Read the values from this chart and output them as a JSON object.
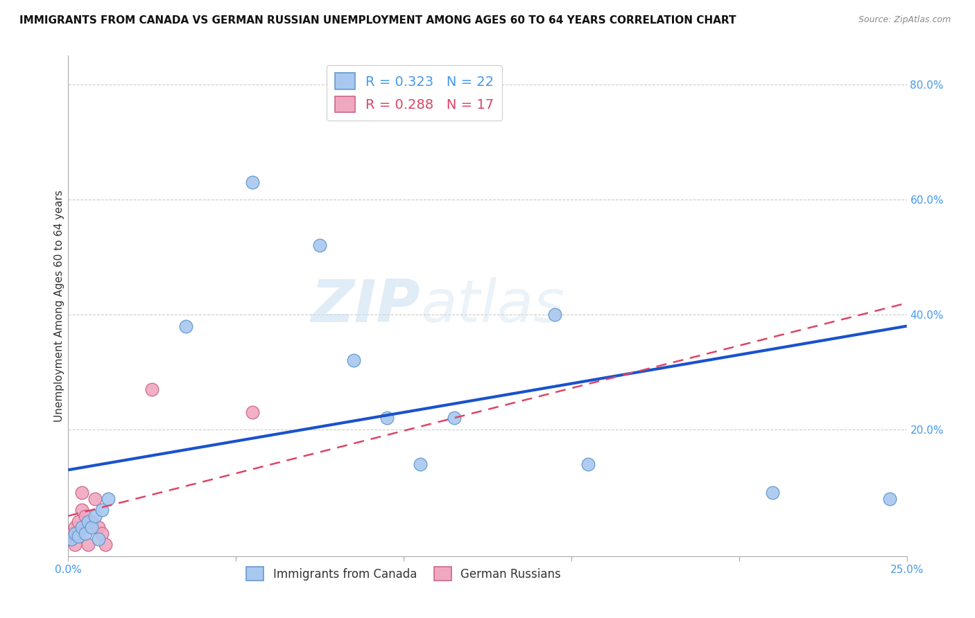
{
  "title": "IMMIGRANTS FROM CANADA VS GERMAN RUSSIAN UNEMPLOYMENT AMONG AGES 60 TO 64 YEARS CORRELATION CHART",
  "source": "Source: ZipAtlas.com",
  "xlabel": "",
  "ylabel": "Unemployment Among Ages 60 to 64 years",
  "xlim": [
    0.0,
    0.25
  ],
  "ylim": [
    -0.02,
    0.85
  ],
  "xticks": [
    0.0,
    0.05,
    0.1,
    0.15,
    0.2,
    0.25
  ],
  "xtick_labels": [
    "0.0%",
    "",
    "",
    "",
    "",
    "25.0%"
  ],
  "yticks_right": [
    0.0,
    0.2,
    0.4,
    0.6,
    0.8
  ],
  "ytick_labels_right": [
    "",
    "20.0%",
    "40.0%",
    "60.0%",
    "80.0%"
  ],
  "canada_x": [
    0.001,
    0.002,
    0.003,
    0.004,
    0.005,
    0.006,
    0.007,
    0.008,
    0.009,
    0.01,
    0.012,
    0.035,
    0.055,
    0.075,
    0.085,
    0.095,
    0.105,
    0.115,
    0.145,
    0.155,
    0.21,
    0.245
  ],
  "canada_y": [
    0.01,
    0.02,
    0.015,
    0.03,
    0.02,
    0.04,
    0.03,
    0.05,
    0.01,
    0.06,
    0.08,
    0.38,
    0.63,
    0.52,
    0.32,
    0.22,
    0.14,
    0.22,
    0.4,
    0.14,
    0.09,
    0.08
  ],
  "german_x": [
    0.001,
    0.001,
    0.002,
    0.002,
    0.003,
    0.003,
    0.004,
    0.004,
    0.005,
    0.006,
    0.007,
    0.008,
    0.009,
    0.01,
    0.011,
    0.025,
    0.055
  ],
  "german_y": [
    0.01,
    0.02,
    0.0,
    0.03,
    0.04,
    0.02,
    0.06,
    0.09,
    0.05,
    0.0,
    0.04,
    0.08,
    0.03,
    0.02,
    0.0,
    0.27,
    0.23
  ],
  "canada_color": "#a8c8f0",
  "canada_edge_color": "#6699cc",
  "german_color": "#f0a8c0",
  "german_edge_color": "#cc6688",
  "canada_R": 0.323,
  "canada_N": 22,
  "german_R": 0.288,
  "german_N": 17,
  "line_blue": "#1a52cc",
  "line_pink": "#dd4466",
  "watermark_part1": "ZIP",
  "watermark_part2": "atlas",
  "background_color": "#ffffff",
  "grid_color": "#cccccc",
  "title_fontsize": 11,
  "axis_label_fontsize": 11,
  "tick_fontsize": 11,
  "right_tick_color": "#4499ee",
  "marker_size": 180,
  "blue_line_x0": 0.0,
  "blue_line_y0": 0.13,
  "blue_line_x1": 0.25,
  "blue_line_y1": 0.38,
  "pink_line_x0": 0.0,
  "pink_line_y0": 0.05,
  "pink_line_x1": 0.25,
  "pink_line_y1": 0.42
}
